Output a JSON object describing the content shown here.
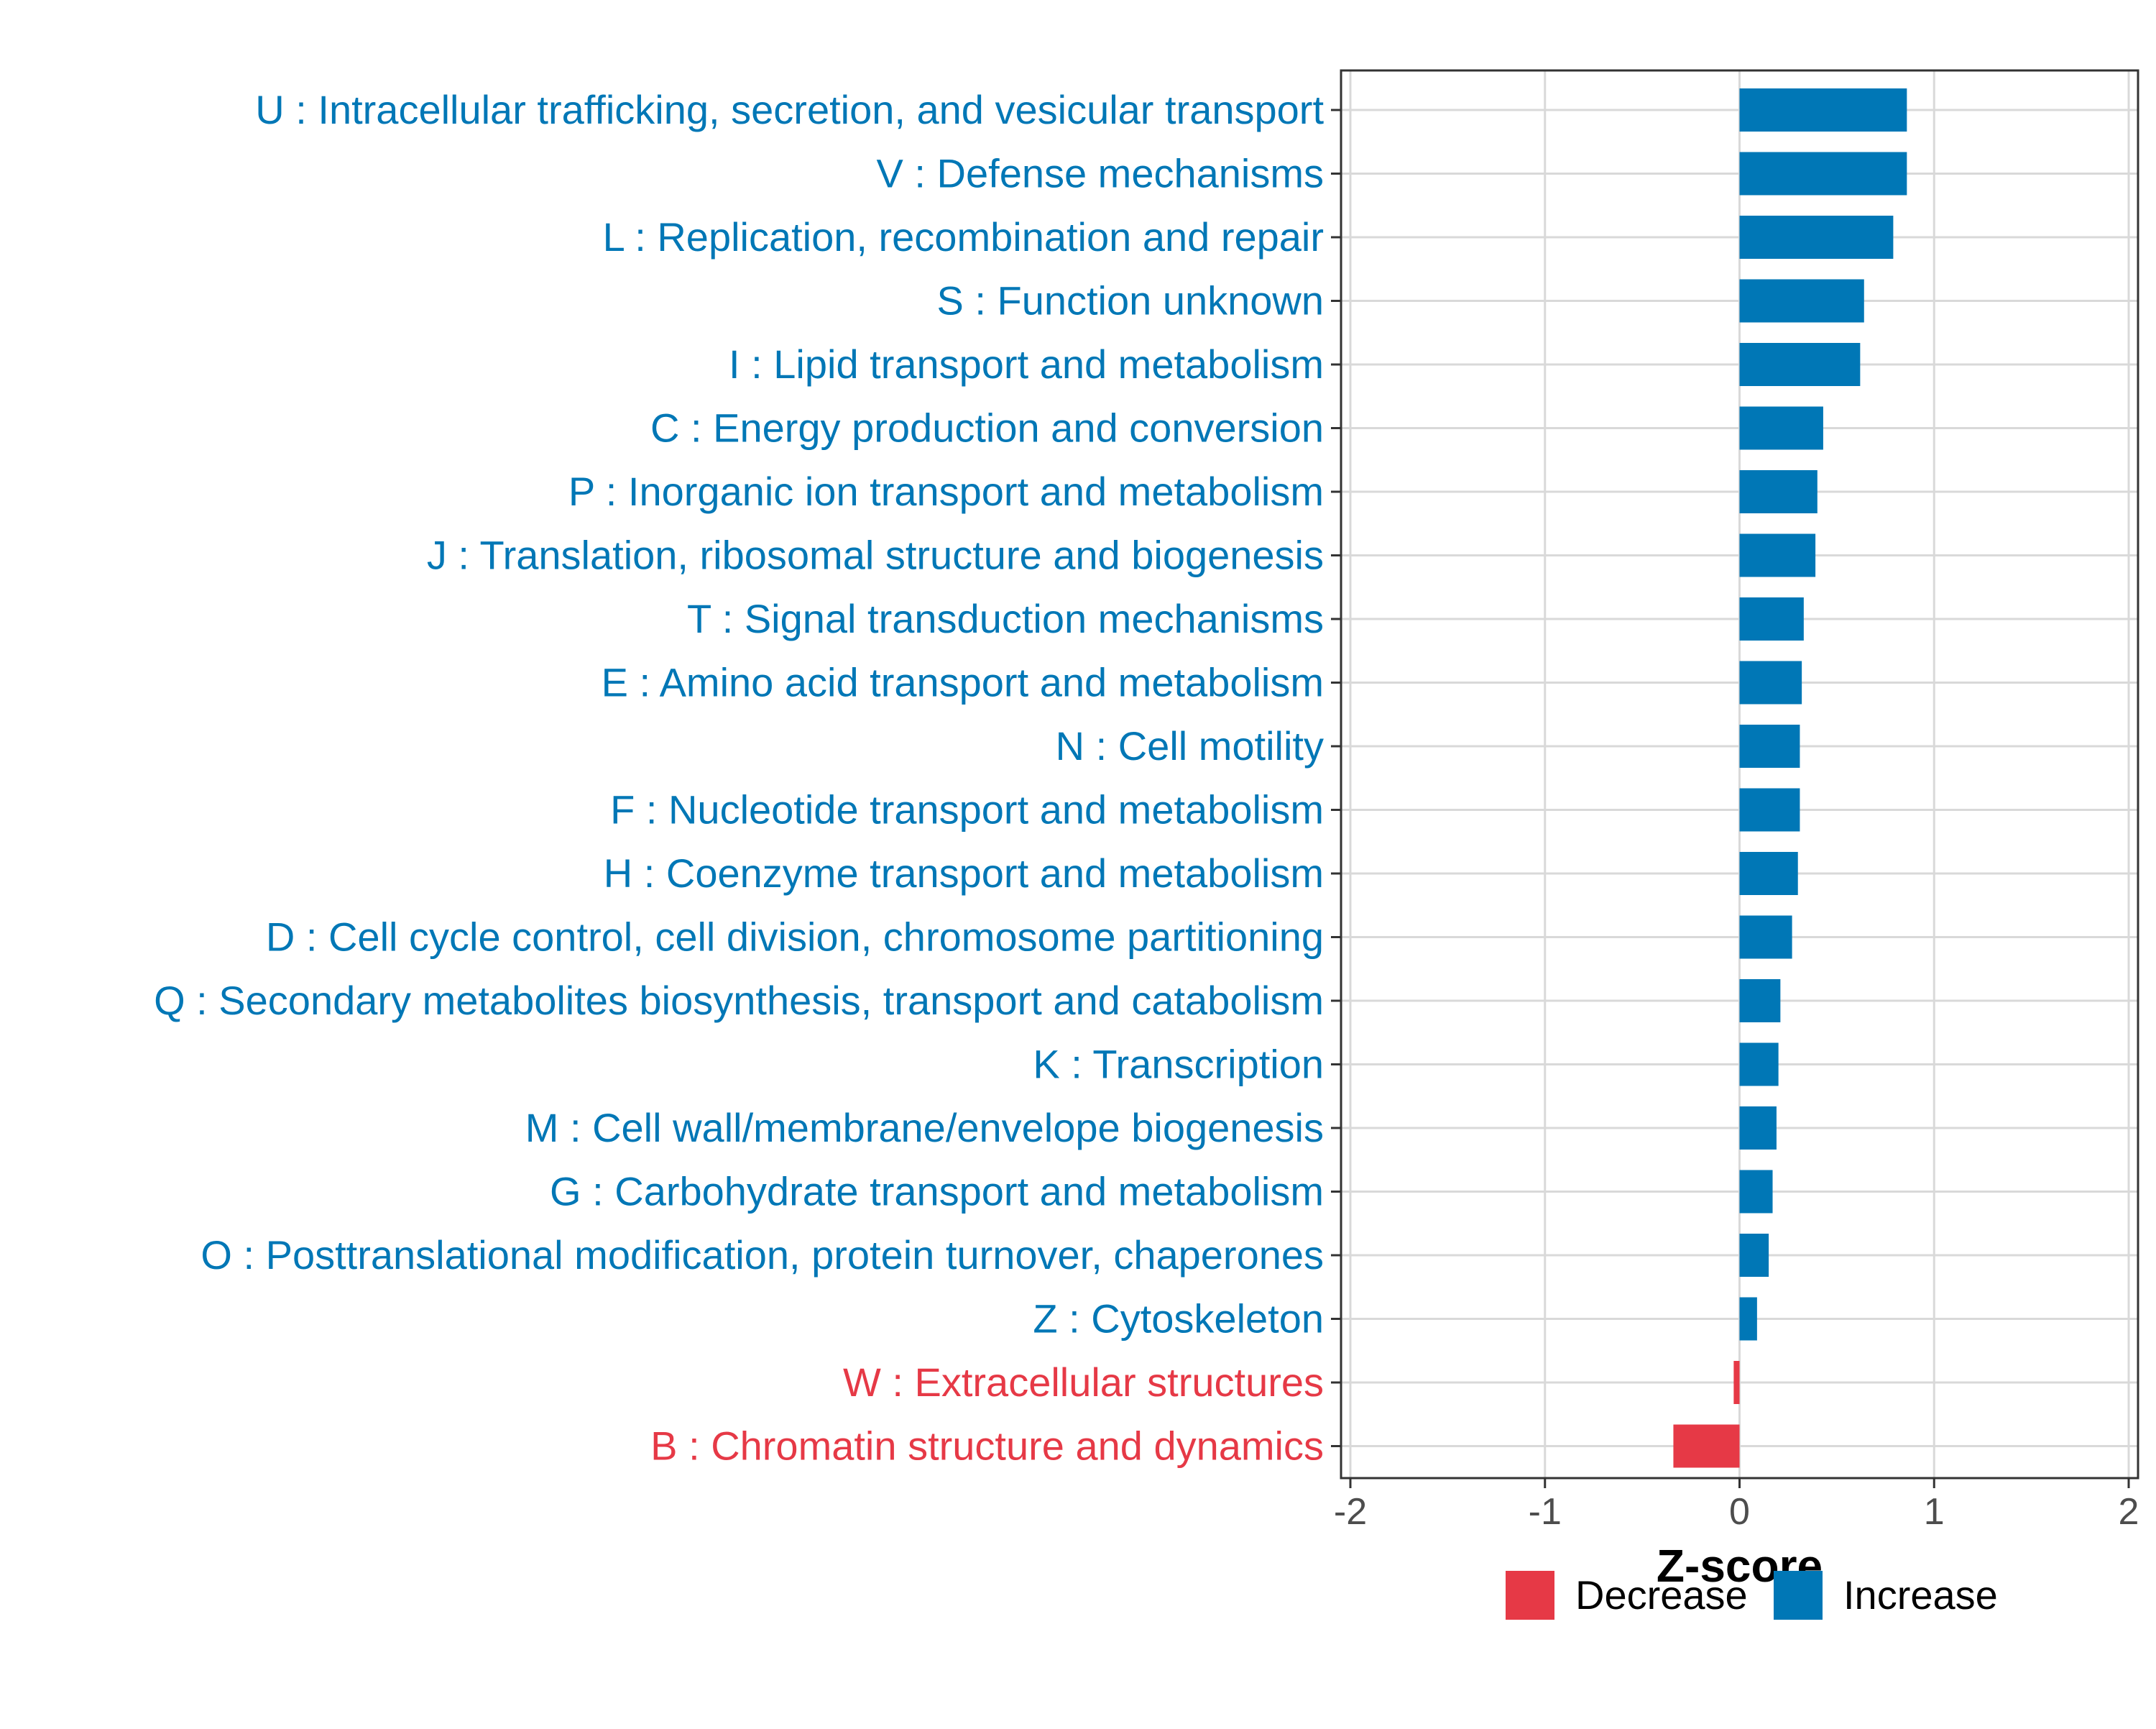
{
  "chart_data": {
    "type": "bar",
    "orientation": "horizontal",
    "title": "",
    "xlabel": "Z-score",
    "ylabel": "",
    "xlim": [
      -2,
      2
    ],
    "x_ticks": [
      -2,
      -1,
      0,
      1,
      2
    ],
    "x_tick_labels": [
      "-2",
      "-1",
      "0",
      "1",
      "2"
    ],
    "grid": true,
    "categories": [
      "U : Intracellular trafficking, secretion, and vesicular transport",
      "V : Defense mechanisms",
      "L : Replication, recombination and repair",
      "S : Function unknown",
      "I : Lipid transport and metabolism",
      "C : Energy production and conversion",
      "P : Inorganic ion transport and metabolism",
      "J : Translation, ribosomal structure and biogenesis",
      "T : Signal transduction mechanisms",
      "E : Amino acid transport and metabolism",
      "N : Cell motility",
      "F : Nucleotide transport and metabolism",
      "H : Coenzyme transport and metabolism",
      "D : Cell cycle control, cell division, chromosome partitioning",
      "Q : Secondary metabolites biosynthesis, transport and catabolism",
      "K : Transcription",
      "M : Cell wall/membrane/envelope biogenesis",
      "G : Carbohydrate transport and metabolism",
      "O : Posttranslational modification, protein turnover, chaperones",
      "Z : Cytoskeleton",
      "W : Extracellular structures",
      "B : Chromatin structure and dynamics"
    ],
    "values": [
      0.86,
      0.86,
      0.79,
      0.64,
      0.62,
      0.43,
      0.4,
      0.39,
      0.33,
      0.32,
      0.31,
      0.31,
      0.3,
      0.27,
      0.21,
      0.2,
      0.19,
      0.17,
      0.15,
      0.09,
      -0.03,
      -0.34
    ],
    "direction": [
      "Increase",
      "Increase",
      "Increase",
      "Increase",
      "Increase",
      "Increase",
      "Increase",
      "Increase",
      "Increase",
      "Increase",
      "Increase",
      "Increase",
      "Increase",
      "Increase",
      "Increase",
      "Increase",
      "Increase",
      "Increase",
      "Increase",
      "Increase",
      "Decrease",
      "Decrease"
    ],
    "legend": {
      "position": "bottom",
      "entries": [
        {
          "label": "Decrease",
          "color": "#e63946"
        },
        {
          "label": "Increase",
          "color": "#0077b6"
        }
      ]
    },
    "colors": {
      "Increase": "#0077b6",
      "Decrease": "#e63946",
      "grid": "#d9d9d9",
      "axis": "#333333",
      "tick_label": "#4d4d4d",
      "axis_title": "#000000"
    }
  }
}
